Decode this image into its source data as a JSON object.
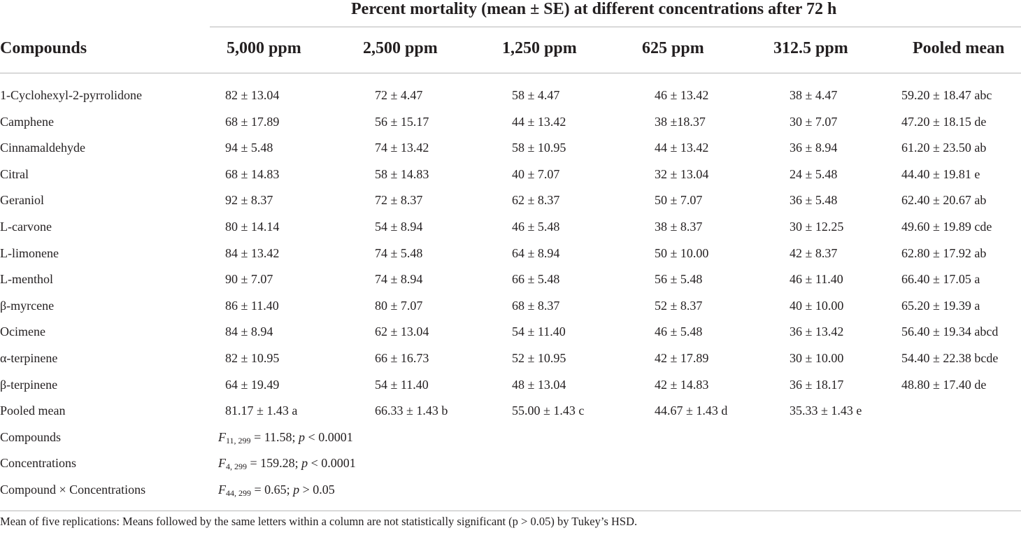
{
  "table": {
    "spanning_header": "Percent mortality (mean ± SE) at different concentrations after 72 h",
    "columns": [
      "Compounds",
      "5,000 ppm",
      "2,500 ppm",
      "1,250 ppm",
      "625 ppm",
      "312.5 ppm",
      "Pooled mean"
    ],
    "rows": [
      {
        "name": "1-Cyclohexyl-2-pyrrolidone",
        "values": [
          "82 ± 13.04",
          "72 ± 4.47",
          "58 ± 4.47",
          "46 ± 13.42",
          "38 ± 4.47",
          "59.20 ± 18.47 abc"
        ]
      },
      {
        "name": "Camphene",
        "values": [
          "68 ± 17.89",
          "56 ± 15.17",
          "44 ± 13.42",
          "38 ±18.37",
          "30 ± 7.07",
          "47.20 ± 18.15 de"
        ]
      },
      {
        "name": "Cinnamaldehyde",
        "values": [
          "94 ± 5.48",
          "74 ± 13.42",
          "58 ± 10.95",
          "44 ± 13.42",
          "36 ± 8.94",
          "61.20 ± 23.50 ab"
        ]
      },
      {
        "name": "Citral",
        "values": [
          "68 ± 14.83",
          "58 ± 14.83",
          "40 ± 7.07",
          "32 ± 13.04",
          "24 ± 5.48",
          "44.40 ± 19.81 e"
        ]
      },
      {
        "name": "Geraniol",
        "values": [
          "92 ± 8.37",
          "72 ± 8.37",
          "62 ± 8.37",
          "50 ± 7.07",
          "36 ± 5.48",
          "62.40 ± 20.67 ab"
        ]
      },
      {
        "name": "L-carvone",
        "values": [
          "80 ± 14.14",
          "54 ± 8.94",
          "46 ± 5.48",
          "38 ± 8.37",
          "30 ± 12.25",
          "49.60 ± 19.89 cde"
        ]
      },
      {
        "name": "L-limonene",
        "values": [
          "84 ± 13.42",
          "74 ± 5.48",
          "64 ± 8.94",
          "50 ± 10.00",
          "42 ± 8.37",
          "62.80 ± 17.92 ab"
        ]
      },
      {
        "name": "L-menthol",
        "values": [
          "90 ± 7.07",
          "74 ± 8.94",
          "66 ± 5.48",
          "56 ± 5.48",
          "46 ± 11.40",
          "66.40 ± 17.05 a"
        ]
      },
      {
        "name": "β-myrcene",
        "values": [
          "86 ± 11.40",
          "80 ± 7.07",
          "68 ± 8.37",
          "52 ± 8.37",
          "40 ± 10.00",
          "65.20 ± 19.39 a"
        ]
      },
      {
        "name": "Ocimene",
        "values": [
          "84 ± 8.94",
          "62 ± 13.04",
          "54 ± 11.40",
          "46 ± 5.48",
          "36 ± 13.42",
          "56.40 ± 19.34 abcd"
        ]
      },
      {
        "name": "α-terpinene",
        "values": [
          "82 ± 10.95",
          "66 ± 16.73",
          "52 ± 10.95",
          "42 ± 17.89",
          "30 ± 10.00",
          "54.40 ± 22.38 bcde"
        ]
      },
      {
        "name": "β-terpinene",
        "values": [
          "64 ± 19.49",
          "54 ± 11.40",
          "48 ± 13.04",
          "42 ± 14.83",
          "36 ± 18.17",
          "48.80 ± 17.40 de"
        ]
      },
      {
        "name": "Pooled mean",
        "values": [
          "81.17 ± 1.43 a",
          "66.33 ± 1.43 b",
          "55.00 ± 1.43 c",
          "44.67 ± 1.43 d",
          "35.33 ± 1.43 e",
          ""
        ]
      }
    ],
    "stats": [
      {
        "label": "Compounds",
        "f": "F",
        "df": "11, 299",
        "rest": " = 11.58; ",
        "p": "p",
        "p_rest": " < 0.0001"
      },
      {
        "label": "Concentrations",
        "f": "F",
        "df": "4, 299",
        "rest": " = 159.28; ",
        "p": "p",
        "p_rest": " < 0.0001"
      },
      {
        "label": "Compound × Concentrations",
        "f": "F",
        "df": "44, 299",
        "rest": " = 0.65; ",
        "p": "p",
        "p_rest": " > 0.05"
      }
    ],
    "footnote": "Mean of five replications: Means followed by the same letters within a column are not statistically significant (p > 0.05) by Tukey’s HSD."
  }
}
